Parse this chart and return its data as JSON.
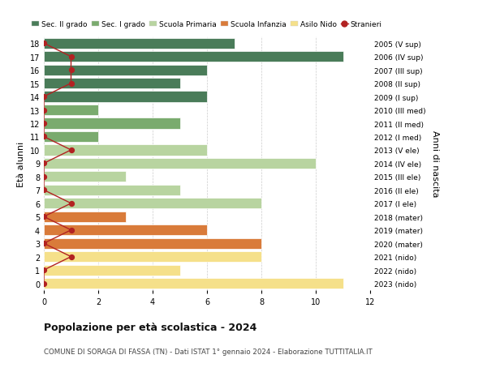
{
  "ages": [
    18,
    17,
    16,
    15,
    14,
    13,
    12,
    11,
    10,
    9,
    8,
    7,
    6,
    5,
    4,
    3,
    2,
    1,
    0
  ],
  "right_labels": [
    "2005 (V sup)",
    "2006 (IV sup)",
    "2007 (III sup)",
    "2008 (II sup)",
    "2009 (I sup)",
    "2010 (III med)",
    "2011 (II med)",
    "2012 (I med)",
    "2013 (V ele)",
    "2014 (IV ele)",
    "2015 (III ele)",
    "2016 (II ele)",
    "2017 (I ele)",
    "2018 (mater)",
    "2019 (mater)",
    "2020 (mater)",
    "2021 (nido)",
    "2022 (nido)",
    "2023 (nido)"
  ],
  "bar_values": [
    7,
    11,
    6,
    5,
    6,
    2,
    5,
    2,
    6,
    10,
    3,
    5,
    8,
    3,
    6,
    8,
    8,
    5,
    11
  ],
  "bar_colors": [
    "#4a7c59",
    "#4a7c59",
    "#4a7c59",
    "#4a7c59",
    "#4a7c59",
    "#7aab6e",
    "#7aab6e",
    "#7aab6e",
    "#b8d4a0",
    "#b8d4a0",
    "#b8d4a0",
    "#b8d4a0",
    "#b8d4a0",
    "#d97b3a",
    "#d97b3a",
    "#d97b3a",
    "#f5e08a",
    "#f5e08a",
    "#f5e08a"
  ],
  "stranieri_values": [
    0,
    1,
    1,
    1,
    0,
    0,
    0,
    0,
    1,
    0,
    0,
    0,
    1,
    0,
    1,
    0,
    1,
    0,
    0
  ],
  "stranieri_color": "#b22222",
  "legend_labels": [
    "Sec. II grado",
    "Sec. I grado",
    "Scuola Primaria",
    "Scuola Infanzia",
    "Asilo Nido",
    "Stranieri"
  ],
  "legend_colors": [
    "#4a7c59",
    "#7aab6e",
    "#b8d4a0",
    "#d97b3a",
    "#f5e08a",
    "#b22222"
  ],
  "ylabel_left": "Età alunni",
  "ylabel_right": "Anni di nascita",
  "title": "Popolazione per età scolastica - 2024",
  "subtitle": "COMUNE DI SORAGA DI FASSA (TN) - Dati ISTAT 1° gennaio 2024 - Elaborazione TUTTITALIA.IT",
  "xlim": [
    0,
    12
  ],
  "xticks": [
    0,
    2,
    4,
    6,
    8,
    10,
    12
  ],
  "background_color": "#ffffff",
  "bar_edge_color": "#ffffff",
  "grid_color": "#cccccc"
}
